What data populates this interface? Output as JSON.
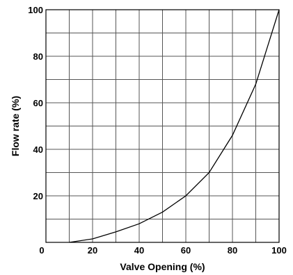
{
  "chart_data": {
    "type": "line",
    "title": "",
    "xlabel": "Valve Opening (%)",
    "ylabel": "Flow rate (%)",
    "xlim": [
      0,
      100
    ],
    "ylim": [
      0,
      100
    ],
    "x_grid_step": 10,
    "y_grid_step": 10,
    "x_ticks": [
      {
        "value": 0,
        "label": "0"
      },
      {
        "value": 20,
        "label": "20"
      },
      {
        "value": 40,
        "label": "40"
      },
      {
        "value": 60,
        "label": "60"
      },
      {
        "value": 80,
        "label": "80"
      },
      {
        "value": 100,
        "label": "100"
      }
    ],
    "y_ticks": [
      {
        "value": 20,
        "label": "20"
      },
      {
        "value": 40,
        "label": "40"
      },
      {
        "value": 60,
        "label": "60"
      },
      {
        "value": 80,
        "label": "80"
      },
      {
        "value": 100,
        "label": "100"
      }
    ],
    "grid": true,
    "series": [
      {
        "color": "#000000",
        "x": [
          10,
          20,
          30,
          40,
          50,
          60,
          70,
          80,
          90,
          100
        ],
        "y": [
          0,
          1.5,
          4.5,
          8,
          13,
          20,
          30,
          46,
          68,
          100
        ]
      }
    ]
  }
}
